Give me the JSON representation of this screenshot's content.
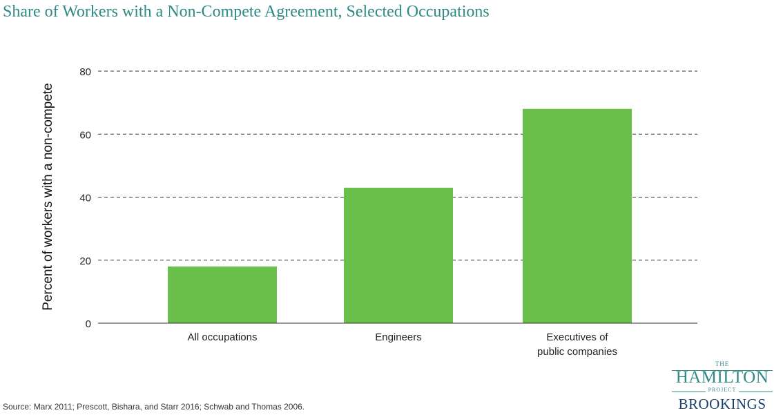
{
  "title": "Share of Workers with a Non-Compete Agreement, Selected Occupations",
  "source": "Source: Marx 2011; Prescott, Bishara, and Starr 2016; Schwab and Thomas 2006.",
  "logo": {
    "the": "THE",
    "hamilton": "HAMILTON",
    "project": "PROJECT",
    "brookings": "BROOKINGS"
  },
  "colors": {
    "bar": "#6abf4b",
    "title": "#2e8a84",
    "brookings": "#1a3f6b"
  },
  "chart_data": {
    "type": "bar",
    "categories": [
      [
        "All occupations"
      ],
      [
        "Engineers"
      ],
      [
        "Executives of",
        "public companies"
      ]
    ],
    "values": [
      18,
      43,
      68
    ],
    "ylabel": "Percent of workers with a non-compete",
    "xlabel": "",
    "ylim": [
      0,
      80
    ],
    "yticks": [
      0,
      20,
      40,
      60,
      80
    ],
    "grid": true
  }
}
